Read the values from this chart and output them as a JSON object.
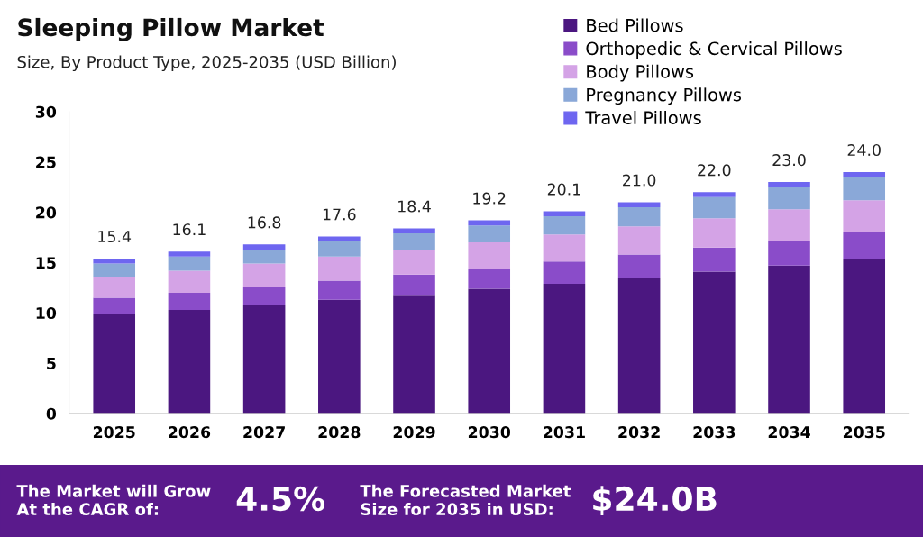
{
  "chart_data": {
    "type": "bar",
    "title": "Sleeping Pillow Market",
    "subtitle": "Size, By Product Type, 2025-2035 (USD Billion)",
    "categories": [
      "2025",
      "2026",
      "2027",
      "2028",
      "2029",
      "2030",
      "2031",
      "2032",
      "2033",
      "2034",
      "2035"
    ],
    "stacked": true,
    "series": [
      {
        "name": "Bed Pillows",
        "color": "#4b1780",
        "values": [
          9.9,
          10.3,
          10.8,
          11.3,
          11.8,
          12.4,
          12.9,
          13.5,
          14.1,
          14.7,
          15.4
        ]
      },
      {
        "name": "Orthopedic & Cervical Pillows",
        "color": "#8a4cc9",
        "values": [
          1.6,
          1.7,
          1.8,
          1.9,
          2.0,
          2.0,
          2.2,
          2.3,
          2.4,
          2.5,
          2.6
        ]
      },
      {
        "name": "Body Pillows",
        "color": "#d4a3e6",
        "values": [
          2.1,
          2.2,
          2.3,
          2.4,
          2.5,
          2.6,
          2.7,
          2.8,
          2.9,
          3.1,
          3.2
        ]
      },
      {
        "name": "Pregnancy Pillows",
        "color": "#8aa8d8",
        "values": [
          1.3,
          1.4,
          1.4,
          1.5,
          1.6,
          1.7,
          1.8,
          1.9,
          2.1,
          2.2,
          2.3
        ]
      },
      {
        "name": "Travel Pillows",
        "color": "#6e66f0",
        "values": [
          0.5,
          0.5,
          0.5,
          0.5,
          0.5,
          0.5,
          0.5,
          0.5,
          0.5,
          0.5,
          0.5
        ]
      }
    ],
    "totals": [
      "15.4",
      "16.1",
      "16.8",
      "17.6",
      "18.4",
      "19.2",
      "20.1",
      "21.0",
      "22.0",
      "23.0",
      "24.0"
    ],
    "ylim": [
      0,
      30
    ],
    "yticks": [
      0,
      5,
      10,
      15,
      20,
      25,
      30
    ],
    "grid": false,
    "legend": "top right",
    "annotations": [
      "The Market will Grow\nAt the CAGR of:",
      "4.5%",
      "The Forecasted Market\nSize for 2035 in USD:",
      "$24.0B"
    ]
  }
}
